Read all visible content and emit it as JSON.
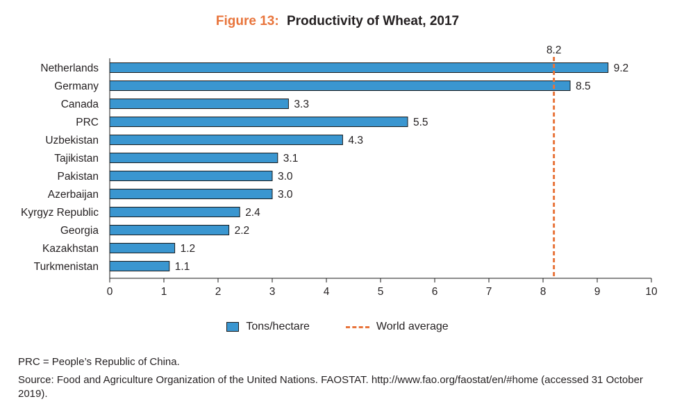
{
  "figure": {
    "label": "Figure 13:",
    "title": "Productivity of Wheat, 2017"
  },
  "chart_data": {
    "type": "bar",
    "orientation": "horizontal",
    "categories": [
      "Netherlands",
      "Germany",
      "Canada",
      "PRC",
      "Uzbekistan",
      "Tajikistan",
      "Pakistan",
      "Azerbaijan",
      "Kyrgyz Republic",
      "Georgia",
      "Kazakhstan",
      "Turkmenistan"
    ],
    "series": [
      {
        "name": "Tons/hectare",
        "values": [
          9.2,
          8.5,
          3.3,
          5.5,
          4.3,
          3.1,
          3.0,
          3.0,
          2.4,
          2.2,
          1.2,
          1.1
        ],
        "color": "#3a96d0"
      }
    ],
    "data_labels": [
      "9.2",
      "8.5",
      "3.3",
      "5.5",
      "4.3",
      "3.1",
      "3.0",
      "3.0",
      "2.4",
      "2.2",
      "1.2",
      "1.1"
    ],
    "reference_line": {
      "name": "World average",
      "value": 8.2,
      "label": "8.2",
      "color": "#e8743b",
      "style": "dashed"
    },
    "xlim": [
      0,
      10
    ],
    "xticks": [
      0,
      1,
      2,
      3,
      4,
      5,
      6,
      7,
      8,
      9,
      10
    ],
    "grid": false,
    "legend_position": "bottom"
  },
  "legend": {
    "bar_label": "Tons/hectare",
    "line_label": "World average"
  },
  "notes": {
    "abbreviation": "PRC = People’s Republic of China.",
    "source": "Source: Food and Agriculture Organization of the United Nations. FAOSTAT. http://www.fao.org/faostat/en/#home (accessed 31 October 2019)."
  }
}
